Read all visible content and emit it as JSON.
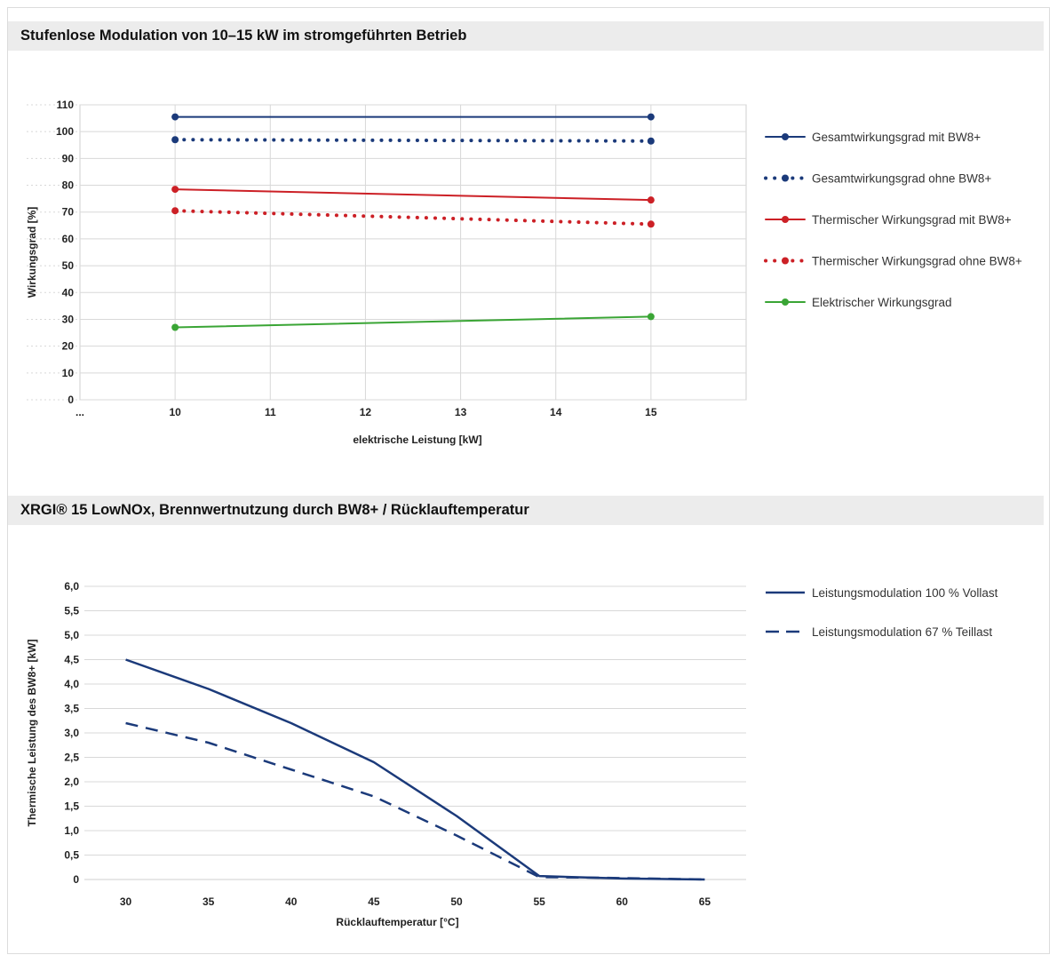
{
  "sections": [
    {
      "title": "Stufenlose Modulation von 10–15 kW im stromgeführten Betrieb"
    },
    {
      "title": "XRGI® 15 LowNOx, Brennwertnutzung durch BW8+ / Rücklauftemperatur"
    }
  ],
  "chart_data": [
    {
      "type": "line",
      "title": "Stufenlose Modulation von 10–15 kW im stromgeführten Betrieb",
      "xlabel": "elektrische Leistung [kW]",
      "ylabel": "Wirkungsgrad [%]",
      "x_tick_labels": [
        "...",
        "10",
        "11",
        "12",
        "13",
        "14",
        "15"
      ],
      "xlim": [
        9,
        16
      ],
      "ylim": [
        0,
        110
      ],
      "y_ticks": [
        0,
        10,
        20,
        30,
        40,
        50,
        60,
        70,
        80,
        90,
        100,
        110
      ],
      "grid": true,
      "legend_position": "right",
      "x": [
        10,
        15
      ],
      "series": [
        {
          "name": "Gesamtwirkungsgrad mit BW8+",
          "values": [
            105.5,
            105.5
          ],
          "color": "#1b3a7a",
          "style": "solid"
        },
        {
          "name": "Gesamtwirkungsgrad ohne BW8+",
          "values": [
            97,
            96.5
          ],
          "color": "#1b3a7a",
          "style": "dotted"
        },
        {
          "name": "Thermischer Wirkungsgrad mit BW8+",
          "values": [
            78.5,
            74.5
          ],
          "color": "#cc2026",
          "style": "solid"
        },
        {
          "name": "Thermischer Wirkungsgrad ohne BW8+",
          "values": [
            70.5,
            65.5
          ],
          "color": "#cc2026",
          "style": "dotted"
        },
        {
          "name": "Elektrischer Wirkungsgrad",
          "values": [
            27,
            31
          ],
          "color": "#3aa535",
          "style": "solid"
        }
      ]
    },
    {
      "type": "line",
      "title": "XRGI® 15 LowNOx, Brennwertnutzung durch BW8+ / Rücklauftemperatur",
      "xlabel": "Rücklauftemperatur [°C]",
      "ylabel": "Thermische Leistung des BW8+  [kW]",
      "x": [
        30,
        35,
        40,
        45,
        50,
        55,
        60,
        65
      ],
      "x_tick_labels": [
        "30",
        "35",
        "40",
        "45",
        "50",
        "55",
        "60",
        "65"
      ],
      "xlim": [
        27.5,
        67.5
      ],
      "ylim": [
        0,
        6
      ],
      "y_ticks": [
        0,
        0.5,
        1,
        1.5,
        2,
        2.5,
        3,
        3.5,
        4,
        4.5,
        5,
        5.5,
        6
      ],
      "y_tick_labels": [
        "0",
        "0,5",
        "1,0",
        "1,5",
        "2,0",
        "2,5",
        "3,0",
        "3,5",
        "4,0",
        "4,5",
        "5,0",
        "5,5",
        "6,0"
      ],
      "grid": true,
      "legend_position": "right",
      "series": [
        {
          "name": "Leistungsmodulation 100 % Vollast",
          "values": [
            4.5,
            3.9,
            3.2,
            2.4,
            1.3,
            0.07,
            0.02,
            0.0
          ],
          "color": "#1b3a7a",
          "style": "solid"
        },
        {
          "name": "Leistungsmodulation 67 % Teillast",
          "values": [
            3.2,
            2.8,
            2.25,
            1.7,
            0.9,
            0.05,
            0.03,
            0.0
          ],
          "color": "#1b3a7a",
          "style": "dashed"
        }
      ]
    }
  ]
}
